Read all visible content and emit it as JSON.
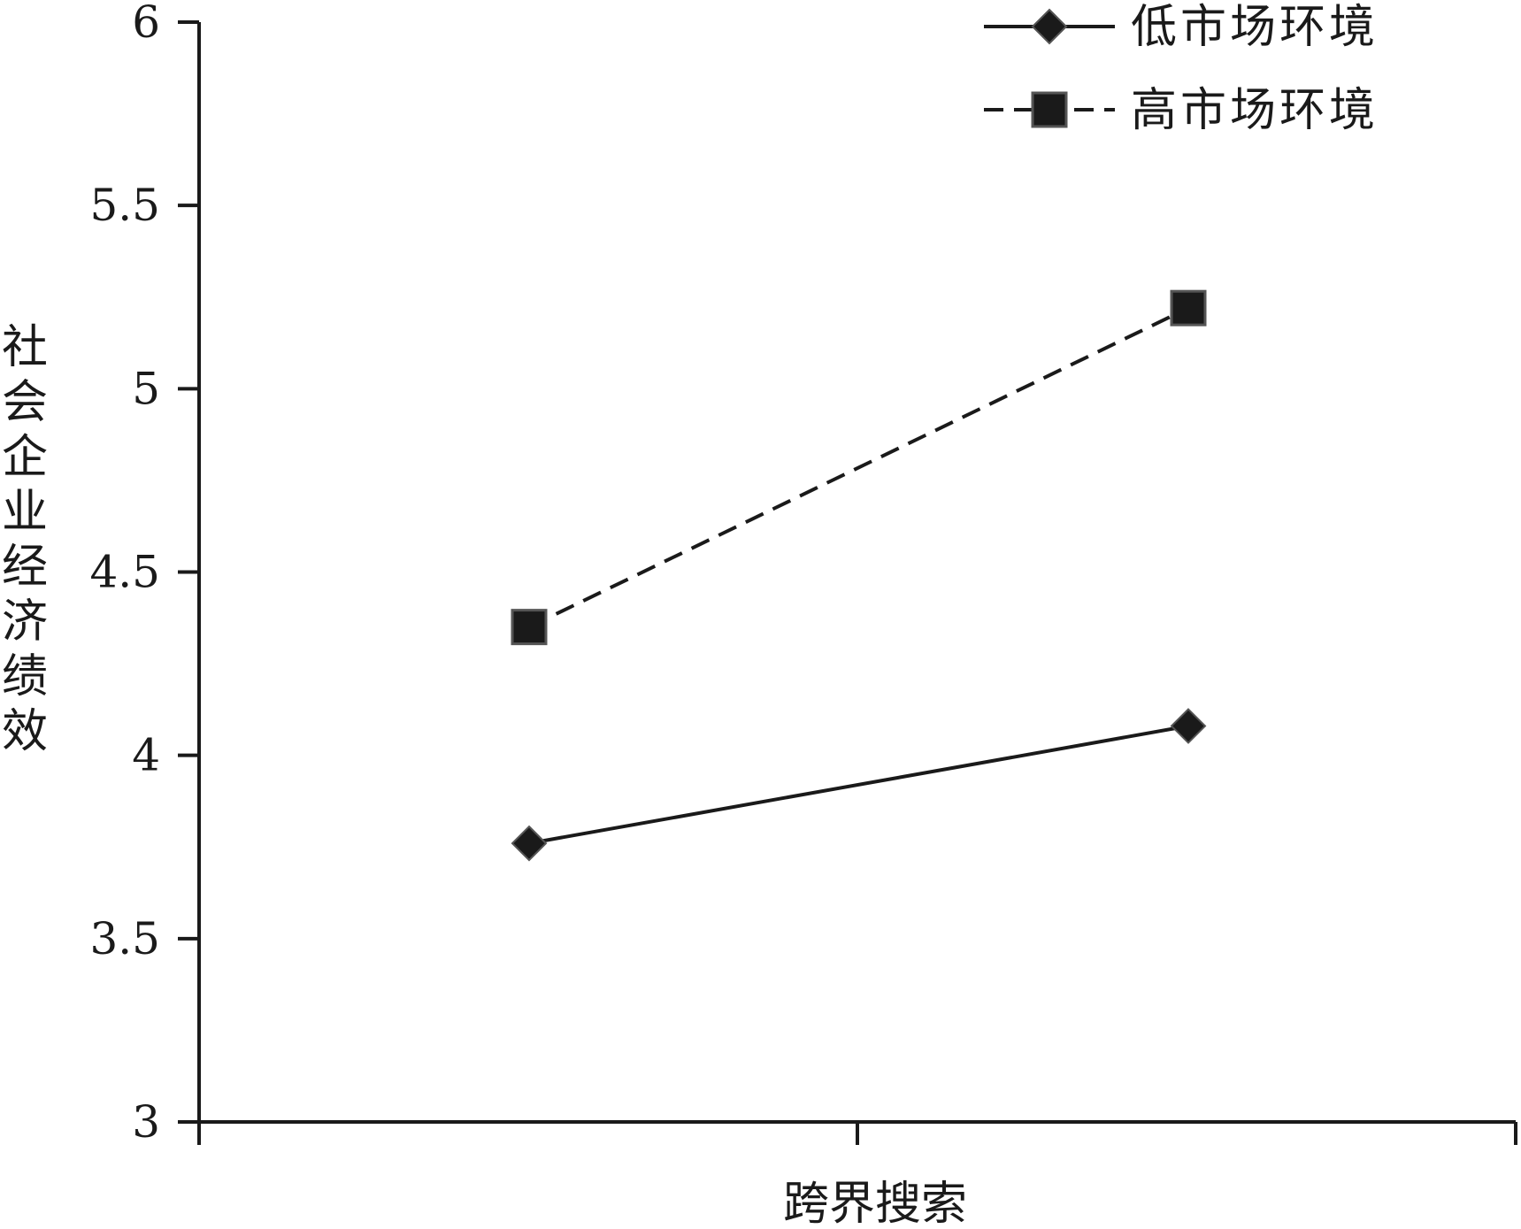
{
  "chart_data": {
    "type": "line",
    "title": "",
    "xlabel": "跨界搜索",
    "ylabel": "社会企业经济绩效",
    "ylim": [
      3,
      6
    ],
    "yticks": [
      "3",
      "3.5",
      "4",
      "4.5",
      "5",
      "5.5",
      "6"
    ],
    "grid": false,
    "legend_position": "top-right",
    "series": [
      {
        "name": "低市场环境",
        "marker": "diamond",
        "line_style": "solid",
        "values": [
          3.76,
          4.08
        ]
      },
      {
        "name": "高市场环境",
        "marker": "square",
        "line_style": "dashed",
        "values": [
          4.35,
          5.22
        ]
      }
    ]
  },
  "colors": {
    "ink": "#1a1a1a",
    "background": "#ffffff"
  }
}
